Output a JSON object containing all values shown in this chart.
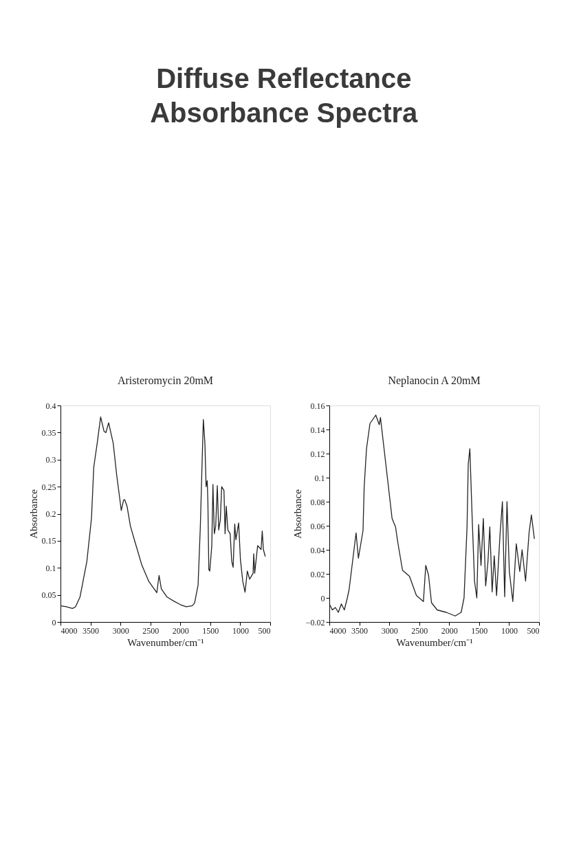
{
  "chart_data": [
    {
      "type": "line",
      "title": "Aristeromycin 20mM",
      "xlabel": "Wavenumber/cm⁻¹",
      "ylabel": "Absorbance",
      "annotations": [
        "Diffuse Reflectance Absorbance Spectra"
      ],
      "xlim": [
        4000,
        500
      ],
      "xticks": [
        4000,
        3500,
        3000,
        2500,
        2000,
        1500,
        1000,
        500
      ],
      "ylim": [
        0,
        0.4
      ],
      "yticks": [
        0,
        0.05,
        0.1,
        0.15,
        0.2,
        0.25,
        0.3,
        0.35,
        0.4
      ],
      "grid": false,
      "marker": "none",
      "line_style": "solid",
      "series": [
        {
          "color": "#222222",
          "x": [
            4000,
            3900,
            3800,
            3750,
            3700,
            3675,
            3560,
            3483,
            3445,
            3388,
            3330,
            3273,
            3242,
            3197,
            3120,
            3063,
            3024,
            2986,
            2948,
            2929,
            2890,
            2833,
            2757,
            2642,
            2527,
            2393,
            2355,
            2317,
            2221,
            2100,
            2000,
            1900,
            1800,
            1762,
            1704,
            1666,
            1639,
            1616,
            1590,
            1570,
            1551,
            1540,
            1525,
            1509,
            1475,
            1456,
            1433,
            1410,
            1383,
            1360,
            1333,
            1310,
            1272,
            1253,
            1234,
            1207,
            1169,
            1142,
            1119,
            1092,
            1073,
            1027,
            997,
            958,
            920,
            882,
            843,
            786,
            775,
            759,
            710,
            652,
            633,
            614,
            583
          ],
          "values": [
            0.03,
            0.028,
            0.025,
            0.028,
            0.04,
            0.046,
            0.112,
            0.192,
            0.286,
            0.33,
            0.379,
            0.352,
            0.35,
            0.368,
            0.33,
            0.272,
            0.239,
            0.206,
            0.225,
            0.226,
            0.214,
            0.177,
            0.148,
            0.105,
            0.075,
            0.054,
            0.086,
            0.061,
            0.046,
            0.038,
            0.032,
            0.028,
            0.03,
            0.035,
            0.068,
            0.177,
            0.286,
            0.374,
            0.33,
            0.25,
            0.261,
            0.221,
            0.097,
            0.094,
            0.141,
            0.254,
            0.163,
            0.177,
            0.252,
            0.17,
            0.188,
            0.25,
            0.243,
            0.163,
            0.214,
            0.17,
            0.163,
            0.112,
            0.101,
            0.181,
            0.152,
            0.183,
            0.115,
            0.075,
            0.055,
            0.094,
            0.079,
            0.09,
            0.126,
            0.09,
            0.141,
            0.134,
            0.168,
            0.134,
            0.121
          ]
        }
      ]
    },
    {
      "type": "line",
      "title": "Neplanocin A 20mM",
      "xlabel": "Wavenumber/cm⁻¹",
      "ylabel": "Absorbance",
      "xlim": [
        4000,
        500
      ],
      "xticks": [
        4000,
        3500,
        3000,
        2500,
        2000,
        1500,
        1000,
        500
      ],
      "ylim": [
        -0.02,
        0.16
      ],
      "yticks": [
        -0.02,
        0,
        0.02,
        0.04,
        0.06,
        0.08,
        0.1,
        0.12,
        0.14,
        0.16
      ],
      "grid": false,
      "marker": "none",
      "line_style": "solid",
      "series": [
        {
          "color": "#222222",
          "x": [
            4000,
            3950,
            3900,
            3850,
            3800,
            3750,
            3700,
            3670,
            3554,
            3515,
            3438,
            3419,
            3380,
            3322,
            3225,
            3167,
            3147,
            3050,
            2953,
            2895,
            2857,
            2779,
            2663,
            2547,
            2430,
            2391,
            2345,
            2295,
            2200,
            2050,
            1900,
            1800,
            1752,
            1702,
            1682,
            1655,
            1616,
            1577,
            1539,
            1508,
            1469,
            1430,
            1391,
            1353,
            1322,
            1283,
            1248,
            1209,
            1151,
            1112,
            1074,
            1035,
            996,
            938,
            880,
            822,
            783,
            725,
            667,
            628,
            578
          ],
          "values": [
            -0.005,
            -0.01,
            -0.008,
            -0.012,
            -0.005,
            -0.01,
            0.0,
            0.007,
            0.054,
            0.033,
            0.056,
            0.092,
            0.124,
            0.145,
            0.152,
            0.144,
            0.15,
            0.108,
            0.066,
            0.059,
            0.046,
            0.023,
            0.018,
            0.002,
            -0.003,
            0.027,
            0.019,
            -0.004,
            -0.01,
            -0.012,
            -0.015,
            -0.012,
            0.0,
            0.059,
            0.111,
            0.124,
            0.066,
            0.014,
            0.0,
            0.061,
            0.027,
            0.066,
            0.01,
            0.03,
            0.059,
            0.005,
            0.035,
            0.002,
            0.053,
            0.08,
            0.001,
            0.08,
            0.022,
            -0.003,
            0.045,
            0.022,
            0.04,
            0.014,
            0.054,
            0.069,
            0.049
          ]
        }
      ]
    }
  ]
}
